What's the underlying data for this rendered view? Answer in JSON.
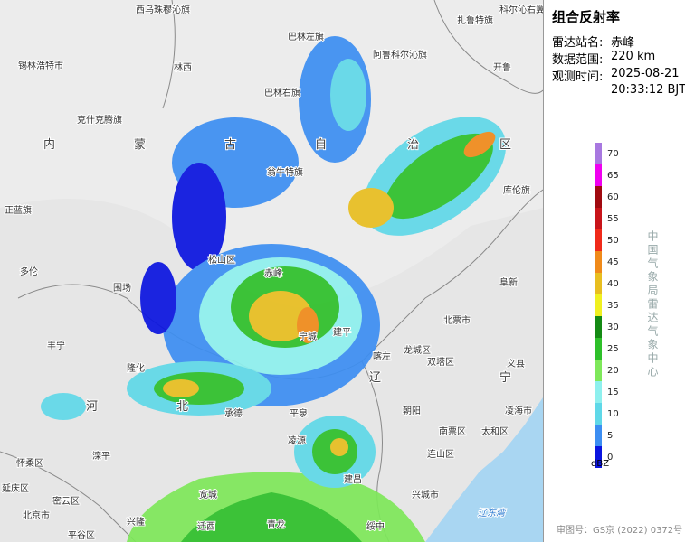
{
  "panel": {
    "title": "组合反射率",
    "station_label": "雷达站名:",
    "station": "赤峰",
    "range_label": "数据范围:",
    "range": "220 km",
    "time_label": "观测时间:",
    "date": "2025-08-21",
    "time": "20:33:12 BJT"
  },
  "legend": {
    "unit": "dBZ",
    "levels": [
      {
        "label": "0",
        "color": "#0a14e0"
      },
      {
        "label": "5",
        "color": "#3c8ef2"
      },
      {
        "label": "10",
        "color": "#5fd8e8"
      },
      {
        "label": "15",
        "color": "#8ef0ee"
      },
      {
        "label": "20",
        "color": "#7ee85a"
      },
      {
        "label": "25",
        "color": "#2ec02a"
      },
      {
        "label": "30",
        "color": "#148a14"
      },
      {
        "label": "35",
        "color": "#f0f020"
      },
      {
        "label": "40",
        "color": "#e8be20"
      },
      {
        "label": "45",
        "color": "#f08a1a"
      },
      {
        "label": "50",
        "color": "#f02a1a"
      },
      {
        "label": "55",
        "color": "#c8141a"
      },
      {
        "label": "60",
        "color": "#a00a10"
      },
      {
        "label": "65",
        "color": "#f000f0"
      },
      {
        "label": "70",
        "color": "#a878e0"
      }
    ]
  },
  "agency": "中国气象局雷达气象中心",
  "approval": "审图号：GS京 (2022) 0372号",
  "map_labels": [
    "西乌珠穆沁旗",
    "扎鲁特旗",
    "科尔沁右翼中旗",
    "巴林左旗",
    "阿鲁科尔沁旗",
    "锡林浩特市",
    "林西",
    "开鲁",
    "巴林右旗",
    "克什克腾旗",
    "内",
    "蒙",
    "古",
    "自",
    "治",
    "区",
    "翁牛特旗",
    "库伦旗",
    "正蓝旗",
    "松山区",
    "赤峰",
    "多伦",
    "围场",
    "阜新",
    "北票市",
    "建平",
    "宁城",
    "喀左",
    "龙城区",
    "双塔区",
    "丰宁",
    "辽",
    "宁",
    "义县",
    "隆化",
    "河",
    "北",
    "朝阳",
    "凌海市",
    "承德",
    "南票区",
    "太和区",
    "平泉",
    "滦平",
    "怀柔区",
    "凌源",
    "连山区",
    "宽城",
    "兴城市",
    "延庆区",
    "密云区",
    "北京市",
    "兴隆",
    "迁西",
    "青龙",
    "平谷区",
    "绥中",
    "建昌",
    "辽东湾"
  ]
}
